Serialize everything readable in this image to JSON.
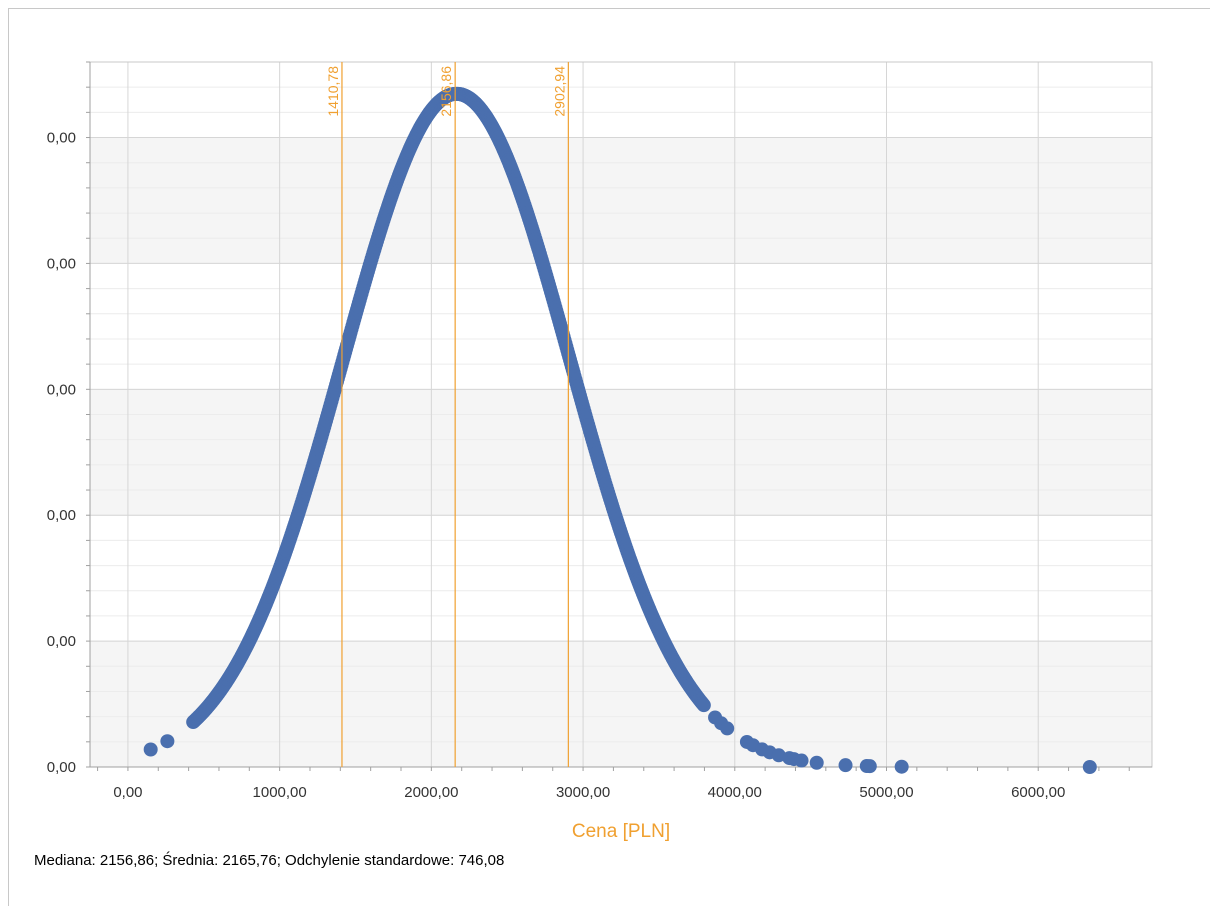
{
  "chart_data": {
    "type": "scatter",
    "xlabel": "Cena [PLN]",
    "ylabel": "",
    "xlim": [
      -250,
      6750
    ],
    "ylim": [
      0,
      0.00056
    ],
    "x_ticks": [
      0,
      1000,
      2000,
      3000,
      4000,
      5000,
      6000
    ],
    "x_tick_labels": [
      "0,00",
      "1000,00",
      "2000,00",
      "3000,00",
      "4000,00",
      "5000,00",
      "6000,00"
    ],
    "y_ticks": [
      0,
      0.0001,
      0.0002,
      0.0003,
      0.0004,
      0.0005
    ],
    "y_tick_labels": [
      "0,00",
      "0,00",
      "0,00",
      "0,00",
      "0,00",
      "0,00"
    ],
    "grid": true,
    "distribution": {
      "mean": 2165.76,
      "std": 746.08
    },
    "series": [
      {
        "color": "#4a6fae",
        "x_dense_range": [
          430,
          3800
        ],
        "x_sparse": [
          150,
          260,
          3870,
          3910,
          3950,
          4080,
          4120,
          4180,
          4230,
          4290,
          4360,
          4390,
          4440,
          4540,
          4730,
          4870,
          4890,
          5100,
          6340
        ]
      }
    ],
    "reference_lines": [
      {
        "x": 1410.78,
        "label": "1410,78"
      },
      {
        "x": 2156.86,
        "label": "2156,86"
      },
      {
        "x": 2902.94,
        "label": "2902,94"
      }
    ],
    "colors": {
      "points": "#4a6fae",
      "reference": "#f0a030",
      "axis_title": "#f0a030"
    }
  },
  "summary_text": "Mediana: 2156,86; Średnia: 2165,76; Odchylenie standardowe: 746,08"
}
